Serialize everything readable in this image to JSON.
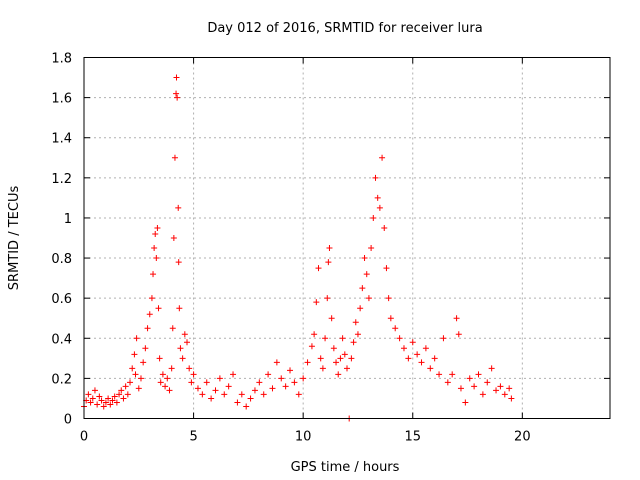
{
  "chart_data": {
    "type": "scatter",
    "title": "Day 012 of 2016, SRMTID for receiver lura",
    "xlabel": "GPS time / hours",
    "ylabel": "SRMTID / TECUs",
    "xlim": [
      0,
      24
    ],
    "ylim": [
      0,
      1.8
    ],
    "xticks": [
      0,
      5,
      10,
      15,
      20
    ],
    "xtick_labels": [
      "0",
      "5",
      "10",
      "15",
      "20"
    ],
    "yticks": [
      0,
      0.2,
      0.4,
      0.6,
      0.8,
      1.0,
      1.2,
      1.4,
      1.6,
      1.8
    ],
    "ytick_labels": [
      "0",
      "0.2",
      "0.4",
      "0.6",
      "0.8",
      "1",
      "1.2",
      "1.4",
      "1.6",
      "1.8"
    ],
    "grid": true,
    "marker": "+",
    "color": "#ff0000",
    "series": [
      {
        "name": "SRMTID",
        "points": [
          [
            0.0,
            0.06
          ],
          [
            0.1,
            0.09
          ],
          [
            0.2,
            0.12
          ],
          [
            0.3,
            0.08
          ],
          [
            0.4,
            0.1
          ],
          [
            0.5,
            0.14
          ],
          [
            0.6,
            0.07
          ],
          [
            0.7,
            0.11
          ],
          [
            0.8,
            0.09
          ],
          [
            0.9,
            0.06
          ],
          [
            1.0,
            0.08
          ],
          [
            1.1,
            0.1
          ],
          [
            1.2,
            0.07
          ],
          [
            1.3,
            0.09
          ],
          [
            1.4,
            0.11
          ],
          [
            1.5,
            0.08
          ],
          [
            1.6,
            0.12
          ],
          [
            1.7,
            0.14
          ],
          [
            1.8,
            0.1
          ],
          [
            1.9,
            0.16
          ],
          [
            2.0,
            0.12
          ],
          [
            2.1,
            0.18
          ],
          [
            2.2,
            0.25
          ],
          [
            2.3,
            0.32
          ],
          [
            2.35,
            0.22
          ],
          [
            2.4,
            0.4
          ],
          [
            2.5,
            0.15
          ],
          [
            2.6,
            0.2
          ],
          [
            2.7,
            0.28
          ],
          [
            2.8,
            0.35
          ],
          [
            2.9,
            0.45
          ],
          [
            3.0,
            0.52
          ],
          [
            3.1,
            0.6
          ],
          [
            3.15,
            0.72
          ],
          [
            3.2,
            0.85
          ],
          [
            3.25,
            0.92
          ],
          [
            3.3,
            0.8
          ],
          [
            3.35,
            0.95
          ],
          [
            3.4,
            0.55
          ],
          [
            3.45,
            0.3
          ],
          [
            3.5,
            0.18
          ],
          [
            3.6,
            0.22
          ],
          [
            3.7,
            0.16
          ],
          [
            3.8,
            0.2
          ],
          [
            3.9,
            0.14
          ],
          [
            4.0,
            0.25
          ],
          [
            4.05,
            0.45
          ],
          [
            4.1,
            0.9
          ],
          [
            4.15,
            1.3
          ],
          [
            4.2,
            1.62
          ],
          [
            4.22,
            1.7
          ],
          [
            4.25,
            1.6
          ],
          [
            4.3,
            1.05
          ],
          [
            4.32,
            0.78
          ],
          [
            4.35,
            0.55
          ],
          [
            4.4,
            0.35
          ],
          [
            4.5,
            0.3
          ],
          [
            4.6,
            0.42
          ],
          [
            4.7,
            0.38
          ],
          [
            4.8,
            0.25
          ],
          [
            4.9,
            0.18
          ],
          [
            5.0,
            0.22
          ],
          [
            5.2,
            0.15
          ],
          [
            5.4,
            0.12
          ],
          [
            5.6,
            0.18
          ],
          [
            5.8,
            0.1
          ],
          [
            6.0,
            0.14
          ],
          [
            6.2,
            0.2
          ],
          [
            6.4,
            0.12
          ],
          [
            6.6,
            0.16
          ],
          [
            6.8,
            0.22
          ],
          [
            7.0,
            0.08
          ],
          [
            7.2,
            0.12
          ],
          [
            7.4,
            0.06
          ],
          [
            7.6,
            0.1
          ],
          [
            7.8,
            0.14
          ],
          [
            8.0,
            0.18
          ],
          [
            8.2,
            0.12
          ],
          [
            8.4,
            0.22
          ],
          [
            8.6,
            0.15
          ],
          [
            8.8,
            0.28
          ],
          [
            9.0,
            0.2
          ],
          [
            9.2,
            0.16
          ],
          [
            9.4,
            0.24
          ],
          [
            9.6,
            0.18
          ],
          [
            9.8,
            0.12
          ],
          [
            10.0,
            0.2
          ],
          [
            10.2,
            0.28
          ],
          [
            10.4,
            0.36
          ],
          [
            10.5,
            0.42
          ],
          [
            10.6,
            0.58
          ],
          [
            10.7,
            0.75
          ],
          [
            10.8,
            0.3
          ],
          [
            10.9,
            0.25
          ],
          [
            11.0,
            0.4
          ],
          [
            11.1,
            0.6
          ],
          [
            11.15,
            0.78
          ],
          [
            11.2,
            0.85
          ],
          [
            11.3,
            0.5
          ],
          [
            11.4,
            0.35
          ],
          [
            11.5,
            0.28
          ],
          [
            11.6,
            0.22
          ],
          [
            11.7,
            0.3
          ],
          [
            11.8,
            0.4
          ],
          [
            11.9,
            0.32
          ],
          [
            12.0,
            0.25
          ],
          [
            12.1,
            0.0
          ],
          [
            12.2,
            0.3
          ],
          [
            12.3,
            0.38
          ],
          [
            12.4,
            0.48
          ],
          [
            12.5,
            0.42
          ],
          [
            12.6,
            0.55
          ],
          [
            12.7,
            0.65
          ],
          [
            12.8,
            0.8
          ],
          [
            12.9,
            0.72
          ],
          [
            13.0,
            0.6
          ],
          [
            13.1,
            0.85
          ],
          [
            13.2,
            1.0
          ],
          [
            13.3,
            1.2
          ],
          [
            13.4,
            1.1
          ],
          [
            13.5,
            1.05
          ],
          [
            13.6,
            1.3
          ],
          [
            13.7,
            0.95
          ],
          [
            13.8,
            0.75
          ],
          [
            13.9,
            0.6
          ],
          [
            14.0,
            0.5
          ],
          [
            14.2,
            0.45
          ],
          [
            14.4,
            0.4
          ],
          [
            14.6,
            0.35
          ],
          [
            14.8,
            0.3
          ],
          [
            15.0,
            0.38
          ],
          [
            15.2,
            0.32
          ],
          [
            15.4,
            0.28
          ],
          [
            15.6,
            0.35
          ],
          [
            15.8,
            0.25
          ],
          [
            16.0,
            0.3
          ],
          [
            16.2,
            0.22
          ],
          [
            16.4,
            0.4
          ],
          [
            16.6,
            0.18
          ],
          [
            16.8,
            0.22
          ],
          [
            17.0,
            0.5
          ],
          [
            17.1,
            0.42
          ],
          [
            17.2,
            0.15
          ],
          [
            17.4,
            0.08
          ],
          [
            17.6,
            0.2
          ],
          [
            17.8,
            0.16
          ],
          [
            18.0,
            0.22
          ],
          [
            18.2,
            0.12
          ],
          [
            18.4,
            0.18
          ],
          [
            18.6,
            0.25
          ],
          [
            18.8,
            0.14
          ],
          [
            19.0,
            0.16
          ],
          [
            19.2,
            0.12
          ],
          [
            19.4,
            0.15
          ],
          [
            19.5,
            0.1
          ]
        ]
      }
    ]
  }
}
